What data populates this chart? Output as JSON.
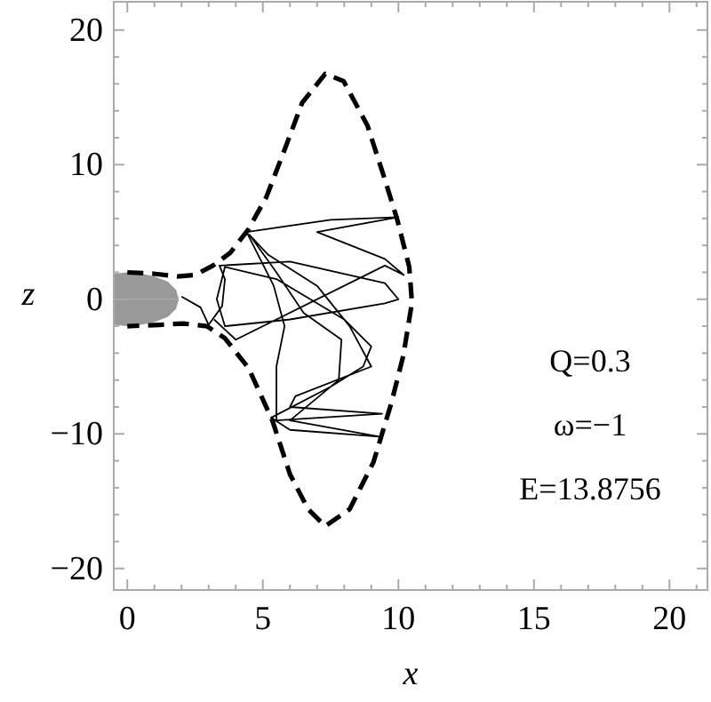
{
  "chart_data": {
    "type": "line",
    "xlabel": "x",
    "ylabel": "z",
    "xlim": [
      -0.5,
      21.4
    ],
    "ylim": [
      -21.6,
      22.1
    ],
    "xticks": [
      0,
      {
        "value": 1,
        "label": null
      },
      {
        "value": 2,
        "label": null
      },
      {
        "value": 3,
        "label": null
      },
      {
        "value": 4,
        "label": null
      },
      5,
      {
        "value": 6,
        "label": null
      },
      {
        "value": 7,
        "label": null
      },
      {
        "value": 8,
        "label": null
      },
      {
        "value": 9,
        "label": null
      },
      10,
      {
        "value": 11,
        "label": null
      },
      {
        "value": 12,
        "label": null
      },
      {
        "value": 13,
        "label": null
      },
      {
        "value": 14,
        "label": null
      },
      15,
      {
        "value": 16,
        "label": null
      },
      {
        "value": 17,
        "label": null
      },
      {
        "value": 18,
        "label": null
      },
      {
        "value": 19,
        "label": null
      },
      20,
      {
        "value": 21,
        "label": null
      }
    ],
    "yticks": [
      -20,
      {
        "value": -18,
        "label": null
      },
      {
        "value": -16,
        "label": null
      },
      {
        "value": -14,
        "label": null
      },
      {
        "value": -12,
        "label": null
      },
      -10,
      {
        "value": -8,
        "label": null
      },
      {
        "value": -6,
        "label": null
      },
      {
        "value": -4,
        "label": null
      },
      {
        "value": -2,
        "label": null
      },
      0,
      {
        "value": 2,
        "label": null
      },
      {
        "value": 4,
        "label": null
      },
      {
        "value": 6,
        "label": null
      },
      {
        "value": 8,
        "label": null
      },
      10,
      {
        "value": 12,
        "label": null
      },
      {
        "value": 14,
        "label": null
      },
      {
        "value": 16,
        "label": null
      },
      {
        "value": 18,
        "label": null
      },
      20
    ],
    "grid": false,
    "marker": "none",
    "annotations": [
      "Q=0.3",
      "ω=−1",
      "E=13.8756"
    ],
    "series": [
      {
        "type": "area",
        "color": "#999999",
        "x": [
          -0.5,
          0,
          0.5,
          1,
          1.5,
          1.8,
          1.9
        ],
        "values": [
          1.9,
          2,
          1.9,
          1.7,
          1.3,
          0.7,
          0
        ]
      },
      {
        "type": "area",
        "color": "#999999",
        "x": [
          -0.5,
          0,
          0.5,
          1,
          1.5,
          1.8,
          1.9
        ],
        "values": [
          -1.9,
          -2,
          -1.9,
          -1.7,
          -1.3,
          -0.7,
          0
        ]
      },
      {
        "type": "line",
        "color": "#000000",
        "line_style": "dashed",
        "x": [
          0,
          0.96,
          1.84,
          2.5,
          3.16,
          3.8,
          4.47,
          5.13,
          5.8,
          6.45,
          7.3,
          7.98,
          8.86,
          9.5,
          9.96,
          10.4,
          10.5,
          10.18,
          9.74,
          9.08,
          8.2,
          7.3,
          6.67,
          6.0,
          5.35,
          4.47,
          3.6,
          2.94,
          2.06,
          1.18,
          0
        ],
        "values": [
          2.0,
          1.9,
          1.7,
          1.8,
          2.5,
          3.46,
          5.2,
          7.6,
          11.1,
          14.6,
          16.75,
          16.2,
          12.9,
          8.9,
          5.9,
          2.4,
          -0.26,
          -4.2,
          -7.7,
          -12.1,
          -15.6,
          -16.85,
          -15.6,
          -13.0,
          -9.0,
          -5.1,
          -2.9,
          -2.0,
          -1.8,
          -1.9,
          -2.0
        ]
      },
      {
        "type": "line",
        "color": "#000000",
        "line_style": "solid",
        "x": [
          2.0,
          2.7,
          3.0,
          3.5,
          3.6,
          3.4,
          6.0,
          9.5,
          10.0,
          9.5,
          6.0,
          3.6,
          3.3,
          3.6,
          5.5,
          8.0,
          9.0,
          8.7,
          7.5,
          5.3,
          6.0,
          9.3,
          6.0,
          7.8,
          7.9,
          6.5,
          5.5,
          4.5,
          5.2,
          7.0,
          8.2,
          9.0,
          6.2,
          6.0,
          9.4,
          5.5,
          5.5,
          5.8,
          5.4,
          4.4,
          7.5,
          10.0,
          7.0,
          9.5,
          10.2,
          9.5,
          4.0,
          3.2
        ],
        "values": [
          0.2,
          -0.6,
          -1.9,
          -0.5,
          1.5,
          2.5,
          2.8,
          1.2,
          0,
          -0.3,
          -1.5,
          -2.0,
          0,
          2.4,
          1.5,
          -1.5,
          -3.5,
          -5.0,
          -6.5,
          -8.8,
          -9.7,
          -10.2,
          -9.0,
          -6.0,
          -3.0,
          -1.0,
          2.0,
          4.8,
          3.3,
          1.0,
          -2.0,
          -5.0,
          -7.2,
          -8.0,
          -8.5,
          -9.0,
          -5.0,
          -2.0,
          1.0,
          5.0,
          5.9,
          6.1,
          5.0,
          3.0,
          1.8,
          2.5,
          -3.0,
          -1.5
        ]
      }
    ]
  }
}
